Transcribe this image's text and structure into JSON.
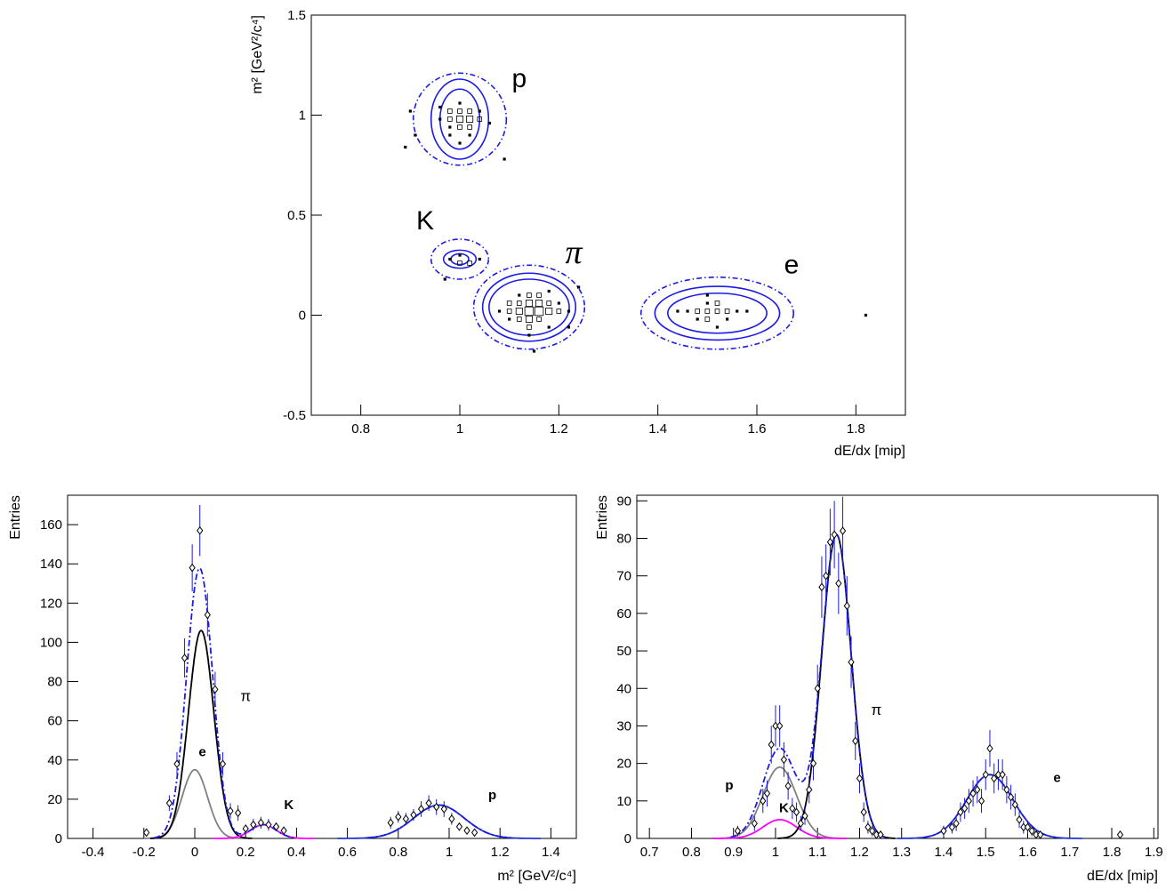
{
  "chart_data": [
    {
      "type": "scatter",
      "x_label": "dE/dx [mip]",
      "y_label": "m² [GeV²/c⁴]",
      "xlim": [
        0.7,
        1.9
      ],
      "ylim": [
        -0.5,
        1.5
      ],
      "xticks": [
        0.8,
        1,
        1.2,
        1.4,
        1.6,
        1.8
      ],
      "yticks": [
        -0.5,
        0,
        0.5,
        1,
        1.5
      ],
      "points": {
        "x": [
          1.0,
          1.02,
          0.98,
          1.0,
          1.02,
          1.0,
          1.04,
          0.98,
          0.96,
          1.02,
          0.98,
          1.04,
          1.0,
          1.02,
          0.98,
          1.06,
          0.96,
          1.0,
          0.9,
          0.89,
          1.09,
          0.91,
          1.0,
          1.02,
          0.98,
          1.04,
          1.0,
          0.97,
          1.14,
          1.16,
          1.12,
          1.14,
          1.16,
          1.14,
          1.18,
          1.1,
          1.12,
          1.18,
          1.12,
          1.16,
          1.2,
          1.1,
          1.14,
          1.16,
          1.14,
          1.08,
          1.22,
          1.2,
          1.1,
          1.18,
          1.12,
          1.18,
          1.14,
          1.22,
          1.24,
          1.15,
          1.5,
          1.52,
          1.48,
          1.54,
          1.5,
          1.52,
          1.46,
          1.56,
          1.48,
          1.54,
          1.5,
          1.44,
          1.58,
          1.52,
          1.5,
          1.82
        ],
        "y": [
          0.98,
          0.98,
          0.98,
          1.02,
          1.02,
          0.94,
          0.98,
          1.02,
          0.98,
          0.94,
          0.94,
          1.02,
          1.06,
          0.9,
          0.9,
          0.96,
          1.04,
          0.86,
          1.02,
          0.84,
          0.78,
          0.9,
          0.26,
          0.26,
          0.28,
          0.28,
          0.3,
          0.18,
          0.02,
          0.02,
          0.02,
          0.06,
          0.06,
          -0.02,
          0.02,
          0.02,
          0.06,
          0.06,
          -0.02,
          -0.02,
          0.02,
          0.06,
          0.1,
          0.1,
          -0.06,
          0.02,
          0.02,
          0.06,
          -0.02,
          -0.06,
          0.1,
          0.12,
          -0.1,
          -0.06,
          0.14,
          -0.18,
          0.02,
          0.02,
          0.02,
          0.02,
          -0.02,
          0.06,
          0.02,
          0.02,
          -0.02,
          -0.02,
          0.06,
          0.02,
          0.02,
          -0.06,
          0.1,
          0.0
        ],
        "size": [
          3,
          3,
          2,
          2,
          2,
          2,
          2,
          2,
          1,
          2,
          1,
          1,
          1,
          1,
          1,
          1,
          1,
          1,
          1,
          1,
          1,
          1,
          2,
          2,
          1,
          1,
          1,
          1,
          4,
          4,
          3,
          3,
          3,
          3,
          3,
          2,
          2,
          2,
          2,
          2,
          2,
          2,
          2,
          2,
          2,
          1,
          1,
          1,
          1,
          1,
          1,
          1,
          1,
          1,
          1,
          1,
          2,
          2,
          2,
          2,
          2,
          2,
          1,
          1,
          1,
          1,
          1,
          1,
          1,
          1,
          1,
          1
        ]
      },
      "contours": [
        {
          "x": 1.0,
          "y": 0.98,
          "rx": [
            0.04,
            0.058,
            0.094
          ],
          "ry": [
            0.15,
            0.2,
            0.23
          ],
          "color": "#1a1ae6"
        },
        {
          "x": 1.0,
          "y": 0.28,
          "rx": [
            0.018,
            0.033,
            0.058
          ],
          "ry": [
            0.027,
            0.045,
            0.1
          ],
          "color": "#1a1ae6"
        },
        {
          "x": 1.14,
          "y": 0.04,
          "rx": [
            0.081,
            0.094,
            0.112
          ],
          "ry": [
            0.14,
            0.17,
            0.21
          ],
          "color": "#1a1ae6"
        },
        {
          "x": 1.52,
          "y": 0.01,
          "rx": [
            0.1,
            0.126,
            0.154
          ],
          "ry": [
            0.1,
            0.134,
            0.18
          ],
          "color": "#1a1ae6"
        }
      ],
      "annotations": [
        {
          "text": "p",
          "x": 1.12,
          "y": 1.14,
          "color": "#000000"
        },
        {
          "text": "K",
          "x": 0.93,
          "y": 0.43,
          "color": "#000000"
        },
        {
          "text": "π",
          "x": 1.23,
          "y": 0.26,
          "color": "#000000"
        },
        {
          "text": "e",
          "x": 1.67,
          "y": 0.21,
          "color": "#000000"
        }
      ]
    },
    {
      "type": "errorbar",
      "x_label": "m² [GeV²/c⁴]",
      "y_label": "Entries",
      "xlim": [
        -0.5,
        1.5
      ],
      "ylim": [
        0,
        175
      ],
      "xticks": [
        -0.4,
        -0.2,
        0,
        0.2,
        0.4,
        0.6,
        0.8,
        1,
        1.2,
        1.4
      ],
      "yticks": [
        0,
        20,
        40,
        60,
        80,
        100,
        120,
        140,
        160
      ],
      "points": {
        "x": [
          -0.19,
          -0.1,
          -0.07,
          -0.04,
          -0.01,
          0.02,
          0.05,
          0.08,
          0.11,
          0.14,
          0.17,
          0.2,
          0.23,
          0.26,
          0.29,
          0.32,
          0.35,
          0.77,
          0.8,
          0.83,
          0.86,
          0.89,
          0.92,
          0.95,
          0.98,
          1.01,
          1.04,
          1.07,
          1.1
        ],
        "y": [
          3,
          18,
          38,
          92,
          138,
          157,
          114,
          76,
          38,
          14,
          13,
          5,
          7,
          8,
          7,
          6,
          4,
          8,
          11,
          10,
          12,
          15,
          18,
          16,
          15,
          10,
          6,
          4,
          3
        ],
        "errors": [
          2,
          4,
          6,
          10,
          12,
          13,
          11,
          9,
          6,
          4,
          4,
          2,
          3,
          3,
          3,
          2,
          2,
          3,
          3,
          3,
          3,
          4,
          4,
          4,
          4,
          3,
          2,
          2,
          2
        ]
      },
      "curves": [
        {
          "color": "#808080",
          "mean": 0.0,
          "sigma": 0.05,
          "amplitude": 35
        },
        {
          "color": "#000000",
          "mean": 0.025,
          "sigma": 0.05,
          "amplitude": 106
        },
        {
          "color": "#ff00ff",
          "mean": 0.27,
          "sigma": 0.05,
          "amplitude": 7
        },
        {
          "color": "#2233cc",
          "mean": 0.96,
          "sigma": 0.1,
          "amplitude": 17
        }
      ],
      "total_color": "#1a1ae6",
      "annotations": [
        {
          "text": "π",
          "x": 0.2,
          "y": 70,
          "color": "#000000"
        },
        {
          "text": "e",
          "x": 0.03,
          "y": 42,
          "color": "#808080"
        },
        {
          "text": "K",
          "x": 0.37,
          "y": 15,
          "color": "#ff00ff"
        },
        {
          "text": "p",
          "x": 1.17,
          "y": 20,
          "color": "#6666dd"
        }
      ]
    },
    {
      "type": "errorbar",
      "x_label": "dE/dx [mip]",
      "y_label": "Entries",
      "xlim": [
        0.67,
        1.91
      ],
      "ylim": [
        0,
        91.5
      ],
      "xticks": [
        0.7,
        0.8,
        0.9,
        1,
        1.1,
        1.2,
        1.3,
        1.4,
        1.5,
        1.6,
        1.7,
        1.8,
        1.9
      ],
      "yticks": [
        0,
        10,
        20,
        30,
        40,
        50,
        60,
        70,
        80,
        90
      ],
      "points": {
        "x": [
          0.91,
          0.95,
          0.97,
          0.98,
          0.99,
          1.0,
          1.01,
          1.02,
          1.03,
          1.04,
          1.05,
          1.06,
          1.07,
          1.08,
          1.09,
          1.1,
          1.11,
          1.12,
          1.13,
          1.14,
          1.15,
          1.16,
          1.17,
          1.18,
          1.19,
          1.2,
          1.21,
          1.22,
          1.23,
          1.24,
          1.25,
          1.4,
          1.42,
          1.43,
          1.44,
          1.45,
          1.46,
          1.47,
          1.48,
          1.49,
          1.5,
          1.51,
          1.52,
          1.53,
          1.54,
          1.55,
          1.56,
          1.57,
          1.58,
          1.59,
          1.6,
          1.61,
          1.62,
          1.63,
          1.82
        ],
        "y": [
          2,
          4,
          10,
          12,
          25,
          30,
          30,
          21,
          14,
          8,
          7,
          4,
          6,
          13,
          20,
          40,
          67,
          70,
          79,
          81,
          68,
          82,
          62,
          47,
          26,
          16,
          7,
          3,
          2,
          1,
          1,
          2,
          3,
          4,
          7,
          8,
          10,
          12,
          13,
          10,
          17,
          24,
          16,
          17,
          17,
          13,
          11,
          9,
          5,
          3,
          3,
          2,
          1,
          1,
          1
        ],
        "errors": [
          1.4,
          2,
          3.2,
          3.5,
          5,
          5.5,
          5.5,
          4.6,
          3.7,
          2.8,
          2.6,
          2,
          2.4,
          3.6,
          4.5,
          6.3,
          8.2,
          8.4,
          8.9,
          9,
          8.2,
          9.1,
          7.9,
          6.9,
          5.1,
          4,
          2.6,
          1.7,
          1.4,
          1,
          1,
          1.4,
          1.7,
          2,
          2.6,
          2.8,
          3.2,
          3.5,
          3.6,
          3.2,
          4.1,
          4.9,
          4,
          4.1,
          4.1,
          3.6,
          3.3,
          3,
          2.2,
          1.7,
          1.7,
          1.4,
          1,
          1,
          1
        ]
      },
      "curves": [
        {
          "color": "#808080",
          "mean": 1.01,
          "sigma": 0.04,
          "amplitude": 19
        },
        {
          "color": "#ff00ff",
          "mean": 1.01,
          "sigma": 0.04,
          "amplitude": 5
        },
        {
          "color": "#000000",
          "mean": 1.145,
          "sigma": 0.035,
          "amplitude": 81
        },
        {
          "color": "#2233cc",
          "mean": 1.51,
          "sigma": 0.055,
          "amplitude": 17
        }
      ],
      "total_color": "#1a1ae6",
      "annotations": [
        {
          "text": "π",
          "x": 1.24,
          "y": 33,
          "color": "#000000"
        },
        {
          "text": "p",
          "x": 0.89,
          "y": 13,
          "color": "#6666dd"
        },
        {
          "text": "K",
          "x": 1.02,
          "y": 7,
          "color": "#ff00ff"
        },
        {
          "text": "e",
          "x": 1.67,
          "y": 15,
          "color": "#808080"
        }
      ]
    }
  ]
}
